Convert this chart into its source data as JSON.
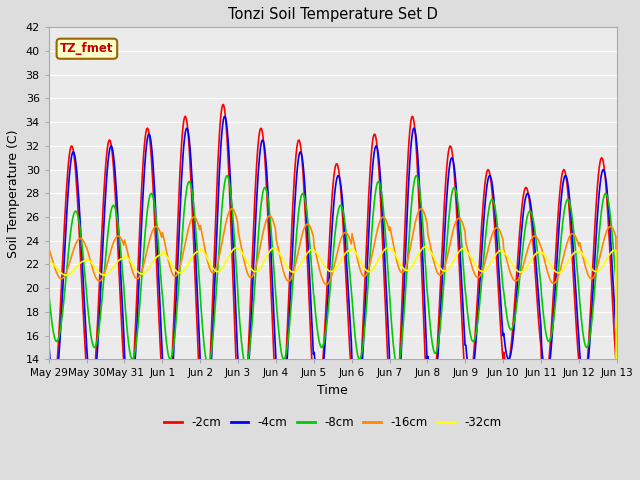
{
  "title": "Tonzi Soil Temperature Set D",
  "xlabel": "Time",
  "ylabel": "Soil Temperature (C)",
  "annotation": "TZ_fmet",
  "ylim": [
    14,
    42
  ],
  "yticks": [
    14,
    16,
    18,
    20,
    22,
    24,
    26,
    28,
    30,
    32,
    34,
    36,
    38,
    40,
    42
  ],
  "xtick_labels": [
    "May 29",
    "May 30",
    "May 31",
    "Jun 1",
    "Jun 2",
    "Jun 3",
    "Jun 4",
    "Jun 5",
    "Jun 6",
    "Jun 7",
    "Jun 8",
    "Jun 9",
    "Jun 10",
    "Jun 11",
    "Jun 12",
    "Jun 13"
  ],
  "series_colors": [
    "#ff0000",
    "#0000ff",
    "#00cc00",
    "#ff8800",
    "#ffff00"
  ],
  "series_labels": [
    "-2cm",
    "-4cm",
    "-8cm",
    "-16cm",
    "-32cm"
  ],
  "bg_color": "#dddddd",
  "plot_bg_color": "#ebebeb",
  "annotation_bg": "#ffffcc",
  "annotation_color": "#cc0000",
  "linewidth": 1.2
}
